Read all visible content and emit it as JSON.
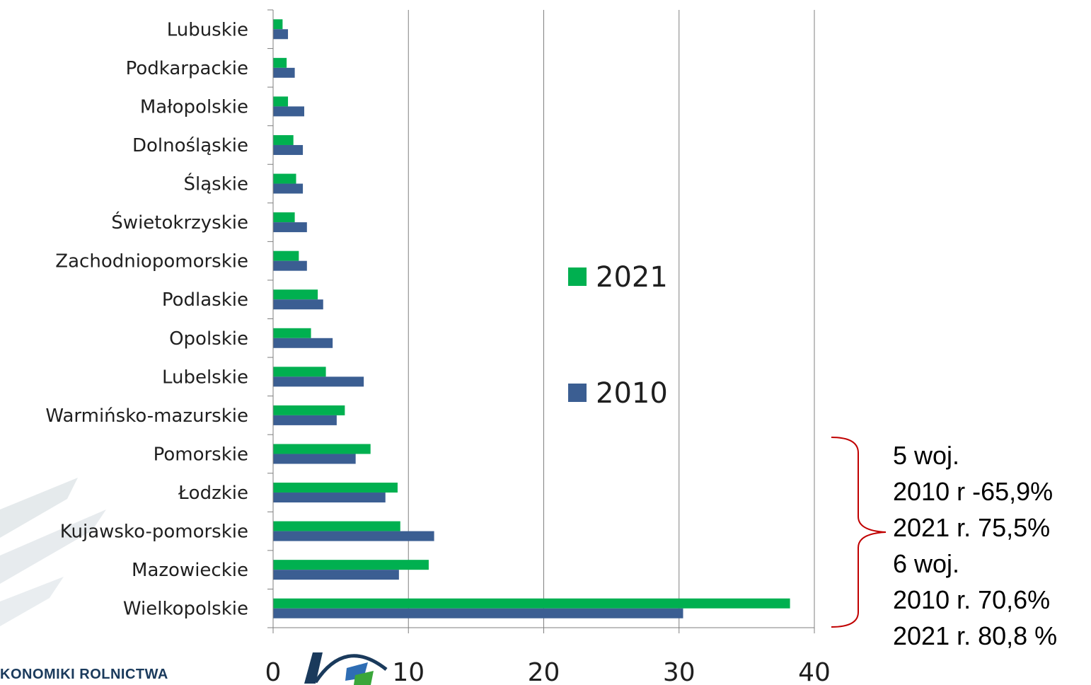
{
  "chart_data": {
    "type": "bar",
    "orientation": "horizontal",
    "categories": [
      "Lubuskie",
      "Podkarpackie",
      "Małopolskie",
      "Dolnośląskie",
      "Śląskie",
      "Świetokrzyskie",
      "Zachodniopomorskie",
      "Podlaskie",
      "Opolskie",
      "Lubelskie",
      "Warmińsko-mazurskie",
      "Pomorskie",
      "Łodzkie",
      "Kujawsko-pomorskie",
      "Mazowieckie",
      "Wielkopolskie"
    ],
    "series": [
      {
        "name": "2021",
        "color": "#00b050",
        "values": [
          0.7,
          1.0,
          1.1,
          1.5,
          1.7,
          1.6,
          1.9,
          3.3,
          2.8,
          3.9,
          5.3,
          7.2,
          9.2,
          9.4,
          11.5,
          38.2
        ]
      },
      {
        "name": "2010",
        "color": "#3b5e92",
        "values": [
          1.1,
          1.6,
          2.3,
          2.2,
          2.2,
          2.5,
          2.5,
          3.7,
          4.4,
          6.7,
          4.7,
          6.1,
          8.3,
          11.9,
          9.3,
          30.3
        ]
      }
    ],
    "xlim": [
      0,
      40
    ],
    "xticks": [
      "0",
      "10",
      "20",
      "30",
      "40"
    ],
    "grid": true,
    "legend": "center-right"
  },
  "annotation": {
    "lines": [
      "5 woj.",
      "2010 r -65,9%",
      "2021 r. 75,5%",
      "6 woj.",
      "2010 r. 70,6%",
      "2021 r. 80,8 %"
    ]
  },
  "footer": {
    "text": "KONOMIKI ROLNICTWA"
  },
  "colors": {
    "bracket": "#c00000",
    "axis": "#7f7f7f",
    "grid": "#808080"
  }
}
